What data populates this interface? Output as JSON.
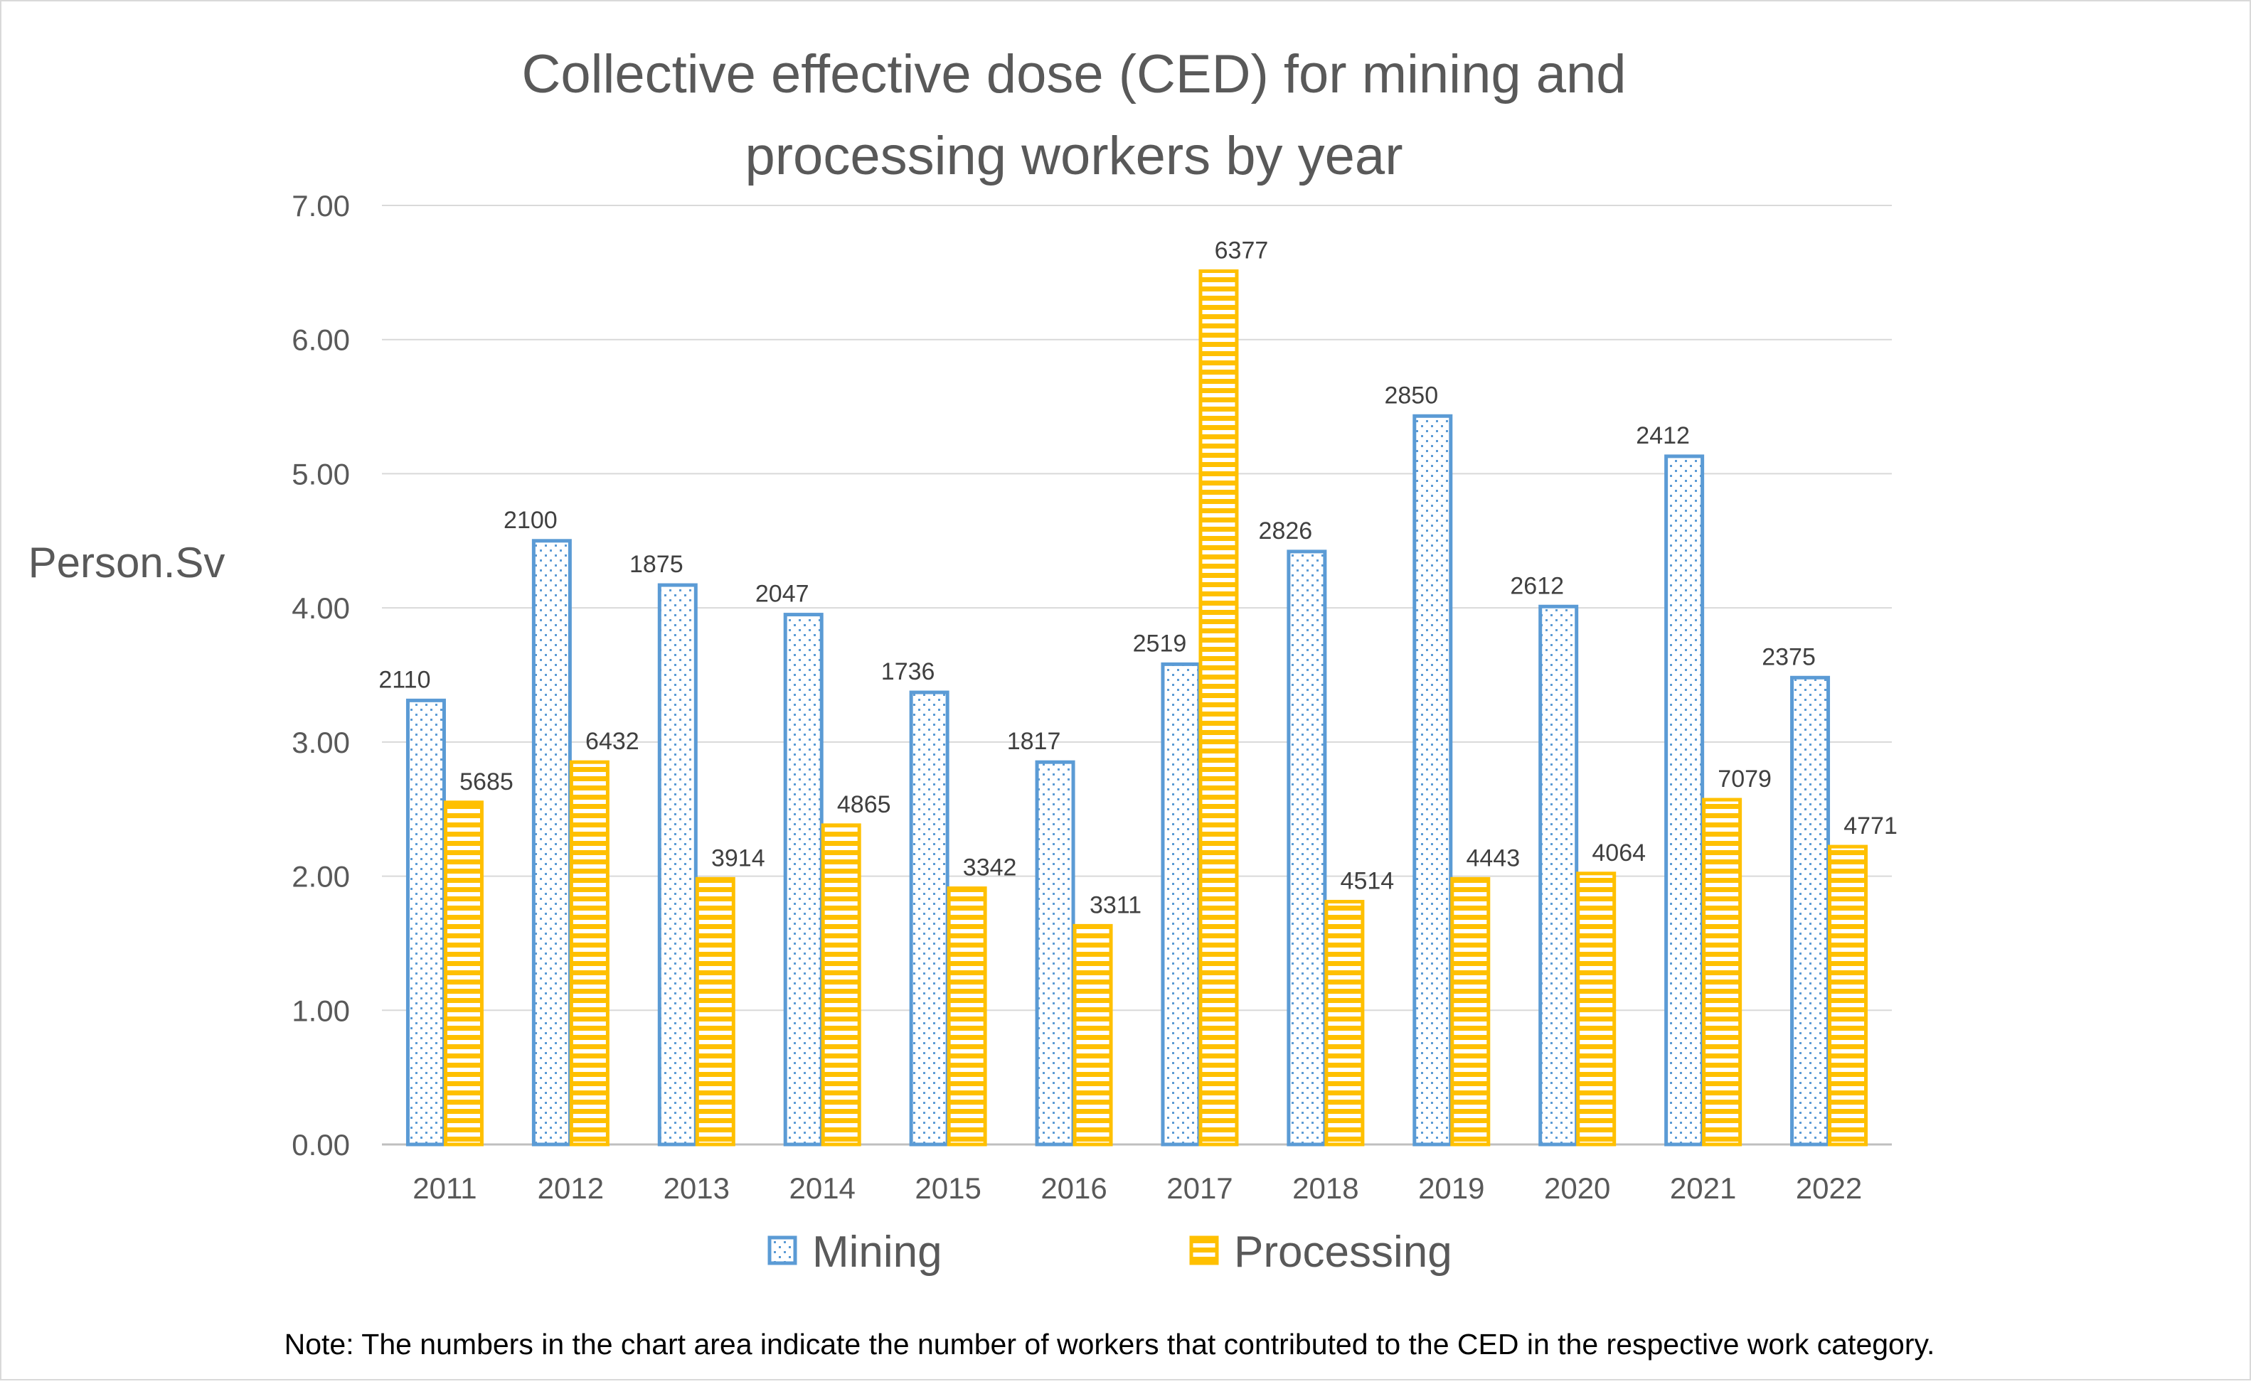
{
  "chart_data": {
    "type": "bar",
    "title_lines": [
      "Collective effective dose (CED) for mining and",
      "processing workers by year"
    ],
    "ylabel": "Person.Sv",
    "xlabel": "",
    "ylim": [
      0,
      7
    ],
    "ytick_values": [
      0,
      1,
      2,
      3,
      4,
      5,
      6,
      7
    ],
    "ytick_labels": [
      "0.00",
      "1.00",
      "2.00",
      "3.00",
      "4.00",
      "5.00",
      "6.00",
      "7.00"
    ],
    "grid": true,
    "legend_position": "bottom",
    "categories": [
      "2011",
      "2012",
      "2013",
      "2014",
      "2015",
      "2016",
      "2017",
      "2018",
      "2019",
      "2020",
      "2021",
      "2022"
    ],
    "series": [
      {
        "name": "Mining",
        "color": "#5B9BD5",
        "pattern": "dotted",
        "values": [
          3.31,
          4.5,
          4.17,
          3.95,
          3.37,
          2.85,
          3.58,
          4.42,
          5.43,
          4.01,
          5.13,
          3.48
        ],
        "data_labels": [
          "2110",
          "2100",
          "1875",
          "2047",
          "1736",
          "1817",
          "2519",
          "2826",
          "2850",
          "2612",
          "2412",
          "2375"
        ]
      },
      {
        "name": "Processing",
        "color": "#FFC000",
        "pattern": "horizontal-stripes",
        "values": [
          2.55,
          2.85,
          1.98,
          2.38,
          1.91,
          1.63,
          6.51,
          1.81,
          1.98,
          2.02,
          2.57,
          2.22
        ],
        "data_labels": [
          "5685",
          "6432",
          "3914",
          "4865",
          "3342",
          "3311",
          "6377",
          "4514",
          "4443",
          "4064",
          "7079",
          "4771"
        ]
      }
    ],
    "note": "Note: The numbers in the chart area indicate the number of workers that contributed to the CED in the respective work category."
  }
}
